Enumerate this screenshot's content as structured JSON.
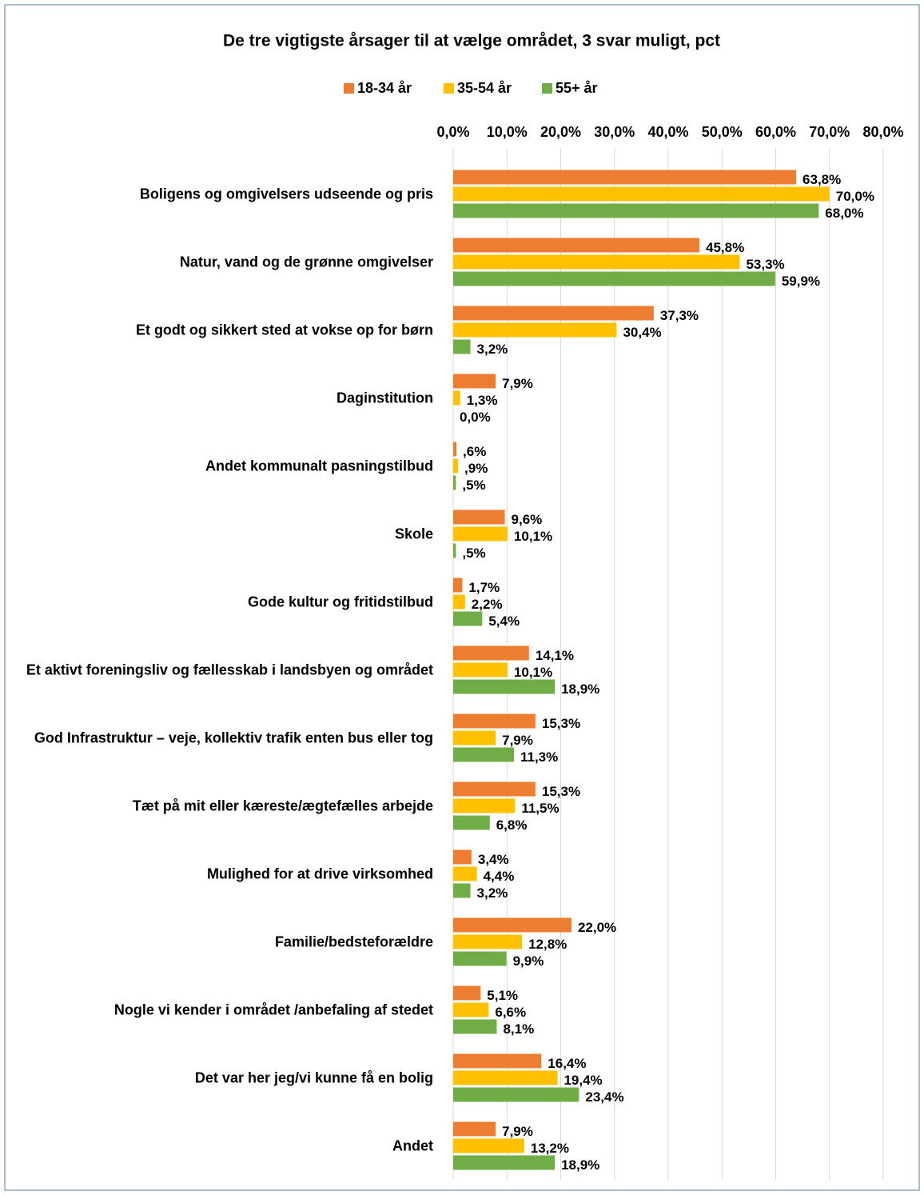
{
  "chart_data": {
    "type": "bar",
    "orientation": "horizontal",
    "title": "De tre vigtigste årsager til at vælge området, 3 svar muligt, pct",
    "categories": [
      "Boligens og omgivelsers udseende og pris",
      "Natur, vand og de grønne omgivelser",
      "Et godt og sikkert sted at vokse op for børn",
      "Daginstitution",
      "Andet kommunalt pasningstilbud",
      "Skole",
      "Gode kultur og fritidstilbud",
      "Et aktivt foreningsliv og fællesskab i landsbyen og området",
      "God Infrastruktur – veje, kollektiv trafik enten bus eller tog",
      "Tæt på mit eller kæreste/ægtefælles arbejde",
      "Mulighed for at drive virksomhed",
      "Familie/bedsteforældre",
      "Nogle vi kender i området /anbefaling af stedet",
      "Det var her jeg/vi kunne få en bolig",
      "Andet"
    ],
    "series": [
      {
        "name": "18-34 år",
        "color": "#ED7D31",
        "values": [
          63.8,
          45.8,
          37.3,
          7.9,
          0.6,
          9.6,
          1.7,
          14.1,
          15.3,
          15.3,
          3.4,
          22.0,
          5.1,
          16.4,
          7.9
        ],
        "value_labels": [
          "63,8%",
          "45,8%",
          "37,3%",
          "7,9%",
          ",6%",
          "9,6%",
          "1,7%",
          "14,1%",
          "15,3%",
          "15,3%",
          "3,4%",
          "22,0%",
          "5,1%",
          "16,4%",
          "7,9%"
        ]
      },
      {
        "name": "35-54 år",
        "color": "#FFC000",
        "values": [
          70.0,
          53.3,
          30.4,
          1.3,
          0.9,
          10.1,
          2.2,
          10.1,
          7.9,
          11.5,
          4.4,
          12.8,
          6.6,
          19.4,
          13.2
        ],
        "value_labels": [
          "70,0%",
          "53,3%",
          "30,4%",
          "1,3%",
          ",9%",
          "10,1%",
          "2,2%",
          "10,1%",
          "7,9%",
          "11,5%",
          "4,4%",
          "12,8%",
          "6,6%",
          "19,4%",
          "13,2%"
        ]
      },
      {
        "name": "55+ år",
        "color": "#70AD47",
        "values": [
          68.0,
          59.9,
          3.2,
          0.0,
          0.5,
          0.5,
          5.4,
          18.9,
          11.3,
          6.8,
          3.2,
          9.9,
          8.1,
          23.4,
          18.9
        ],
        "value_labels": [
          "68,0%",
          "59,9%",
          "3,2%",
          "0,0%",
          ",5%",
          ",5%",
          "5,4%",
          "18,9%",
          "11,3%",
          "6,8%",
          "3,2%",
          "9,9%",
          "8,1%",
          "23,4%",
          "18,9%"
        ]
      }
    ],
    "xlim": [
      0,
      80
    ],
    "xticks": [
      {
        "value": 0,
        "label": "0,0%"
      },
      {
        "value": 10,
        "label": "10,0%"
      },
      {
        "value": 20,
        "label": "20,0%"
      },
      {
        "value": 30,
        "label": "30,0%"
      },
      {
        "value": 40,
        "label": "40,0%"
      },
      {
        "value": 50,
        "label": "50,0%"
      },
      {
        "value": 60,
        "label": "60,0%"
      },
      {
        "value": 70,
        "label": "70,0%"
      },
      {
        "value": 80,
        "label": "80,0%"
      }
    ],
    "grid": true,
    "legend": "top"
  }
}
